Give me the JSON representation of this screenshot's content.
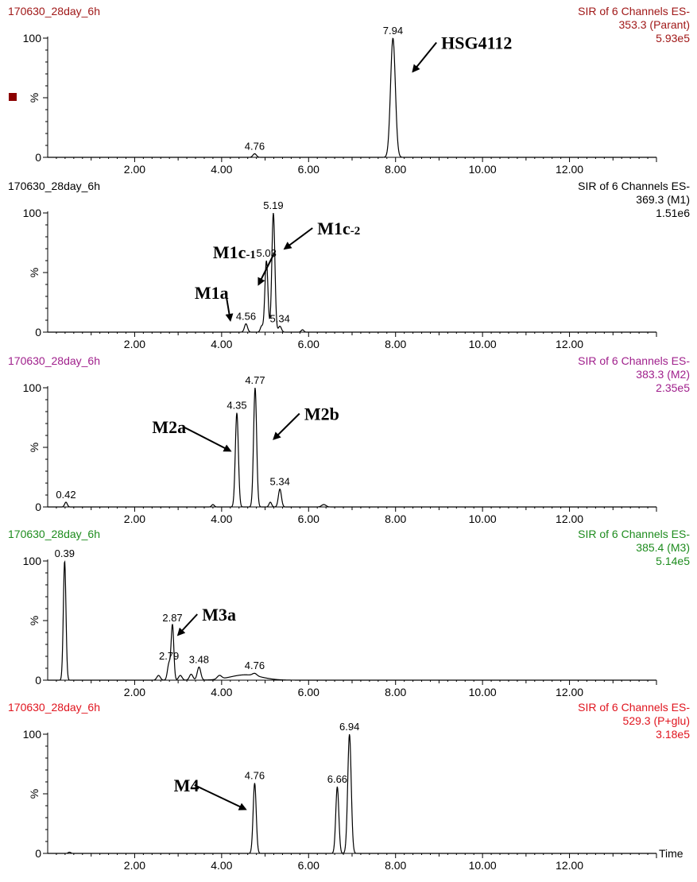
{
  "colors": {
    "axis": "#000000",
    "trace": "#000000"
  },
  "x_axis_label": "Time",
  "x_ticks": [
    "2.00",
    "4.00",
    "6.00",
    "8.00",
    "10.00",
    "12.00"
  ],
  "y_ticks": [
    "100",
    "%",
    "0"
  ],
  "legend_marker_color": "#8b0000",
  "chart_data": [
    {
      "type": "line",
      "sample": "170630_28day_6h",
      "title_line1": "SIR of 6 Channels ES-",
      "title_line2": "353.3 (Parant)",
      "intensity": "5.93e5",
      "header_color": "#a01818",
      "xlim": [
        0,
        14
      ],
      "ylim": [
        0,
        100
      ],
      "peaks": [
        {
          "x": 4.76,
          "y": 3,
          "w": 0.04
        },
        {
          "x": 7.94,
          "y": 100,
          "w": 0.055
        }
      ],
      "labels": [
        {
          "text": "4.76",
          "x": 4.76,
          "y": 3
        },
        {
          "text": "7.94",
          "x": 7.94,
          "y": 100
        }
      ],
      "annotations": [
        {
          "text": "HSG4112",
          "sub": "",
          "x": 8.4,
          "y": 72,
          "tx": 9.05,
          "ty": 91
        }
      ]
    },
    {
      "type": "line",
      "sample": "170630_28day_6h",
      "title_line1": "SIR of 6 Channels ES-",
      "title_line2": "369.3 (M1)",
      "intensity": "1.51e6",
      "header_color": "#000000",
      "xlim": [
        0,
        14
      ],
      "ylim": [
        0,
        100
      ],
      "peaks": [
        {
          "x": 4.56,
          "y": 7,
          "w": 0.035
        },
        {
          "x": 4.92,
          "y": 5,
          "w": 0.03
        },
        {
          "x": 5.03,
          "y": 60,
          "w": 0.035
        },
        {
          "x": 5.19,
          "y": 100,
          "w": 0.035
        },
        {
          "x": 5.34,
          "y": 5,
          "w": 0.035
        },
        {
          "x": 5.86,
          "y": 2,
          "w": 0.03
        }
      ],
      "labels": [
        {
          "text": "4.56",
          "x": 4.56,
          "y": 7
        },
        {
          "text": "5.03",
          "x": 5.03,
          "y": 60
        },
        {
          "text": "5.19",
          "x": 5.19,
          "y": 100
        },
        {
          "text": "5.34",
          "x": 5.34,
          "y": 5
        }
      ],
      "annotations": [
        {
          "text": "M1a",
          "sub": "",
          "x": 4.2,
          "y": 10,
          "tx": 3.38,
          "ty": 28
        },
        {
          "text": "M1c",
          "sub": "-1",
          "x": 4.85,
          "y": 40,
          "tx": 3.8,
          "ty": 62
        },
        {
          "text": "M1c",
          "sub": "-2",
          "x": 5.45,
          "y": 70,
          "tx": 6.2,
          "ty": 82
        }
      ]
    },
    {
      "type": "line",
      "sample": "170630_28day_6h",
      "title_line1": "SIR of 6 Channels ES-",
      "title_line2": "383.3 (M2)",
      "intensity": "2.35e5",
      "header_color": "#a0208c",
      "xlim": [
        0,
        14
      ],
      "ylim": [
        0,
        100
      ],
      "peaks": [
        {
          "x": 0.42,
          "y": 4,
          "w": 0.03
        },
        {
          "x": 3.8,
          "y": 2,
          "w": 0.03
        },
        {
          "x": 4.35,
          "y": 79,
          "w": 0.035
        },
        {
          "x": 4.77,
          "y": 100,
          "w": 0.035
        },
        {
          "x": 5.12,
          "y": 4,
          "w": 0.03
        },
        {
          "x": 5.34,
          "y": 15,
          "w": 0.035
        },
        {
          "x": 6.35,
          "y": 2,
          "w": 0.05
        }
      ],
      "labels": [
        {
          "text": "0.42",
          "x": 0.42,
          "y": 4
        },
        {
          "text": "4.35",
          "x": 4.35,
          "y": 79
        },
        {
          "text": "4.77",
          "x": 4.77,
          "y": 100
        },
        {
          "text": "5.34",
          "x": 5.34,
          "y": 15
        }
      ],
      "annotations": [
        {
          "text": "M2a",
          "sub": "",
          "x": 4.2,
          "y": 47,
          "tx": 2.4,
          "ty": 62
        },
        {
          "text": "M2b",
          "sub": "",
          "x": 5.2,
          "y": 57,
          "tx": 5.9,
          "ty": 73
        }
      ]
    },
    {
      "type": "line",
      "sample": "170630_28day_6h",
      "title_line1": "SIR of 6 Channels ES-",
      "title_line2": "385.4 (M3)",
      "intensity": "5.14e5",
      "header_color": "#1e8c1e",
      "xlim": [
        0,
        14
      ],
      "ylim": [
        0,
        100
      ],
      "peaks": [
        {
          "x": 0.39,
          "y": 100,
          "w": 0.03
        },
        {
          "x": 2.55,
          "y": 4,
          "w": 0.04
        },
        {
          "x": 2.79,
          "y": 14,
          "w": 0.035
        },
        {
          "x": 2.87,
          "y": 46,
          "w": 0.03
        },
        {
          "x": 3.05,
          "y": 4,
          "w": 0.04
        },
        {
          "x": 3.3,
          "y": 5,
          "w": 0.04
        },
        {
          "x": 3.48,
          "y": 11,
          "w": 0.04
        },
        {
          "x": 3.95,
          "y": 3,
          "w": 0.05
        },
        {
          "x": 4.76,
          "y": 2,
          "w": 0.05
        }
      ],
      "hump": {
        "x": 4.55,
        "y": 4.5,
        "w": 0.35
      },
      "labels": [
        {
          "text": "0.39",
          "x": 0.39,
          "y": 100
        },
        {
          "text": "2.79",
          "x": 2.79,
          "y": 14
        },
        {
          "text": "2.87",
          "x": 2.87,
          "y": 46
        },
        {
          "text": "3.48",
          "x": 3.48,
          "y": 11
        },
        {
          "text": "4.76",
          "x": 4.76,
          "y": 6
        }
      ],
      "annotations": [
        {
          "text": "M3a",
          "sub": "",
          "x": 3.0,
          "y": 38,
          "tx": 3.55,
          "ty": 50
        }
      ]
    },
    {
      "type": "line",
      "sample": "170630_28day_6h",
      "title_line1": "SIR of 6 Channels ES-",
      "title_line2": "529.3 (P+glu)",
      "intensity": "3.18e5",
      "header_color": "#e0141e",
      "xlim": [
        0,
        14
      ],
      "ylim": [
        0,
        100
      ],
      "peaks": [
        {
          "x": 0.5,
          "y": 1,
          "w": 0.03
        },
        {
          "x": 4.76,
          "y": 59,
          "w": 0.035
        },
        {
          "x": 6.66,
          "y": 56,
          "w": 0.035
        },
        {
          "x": 6.94,
          "y": 100,
          "w": 0.04
        }
      ],
      "labels": [
        {
          "text": "4.76",
          "x": 4.76,
          "y": 59
        },
        {
          "text": "6.66",
          "x": 6.66,
          "y": 56
        },
        {
          "text": "6.94",
          "x": 6.94,
          "y": 100
        }
      ],
      "annotations": [
        {
          "text": "M4",
          "sub": "",
          "x": 4.55,
          "y": 37,
          "tx": 2.9,
          "ty": 52
        }
      ]
    }
  ]
}
